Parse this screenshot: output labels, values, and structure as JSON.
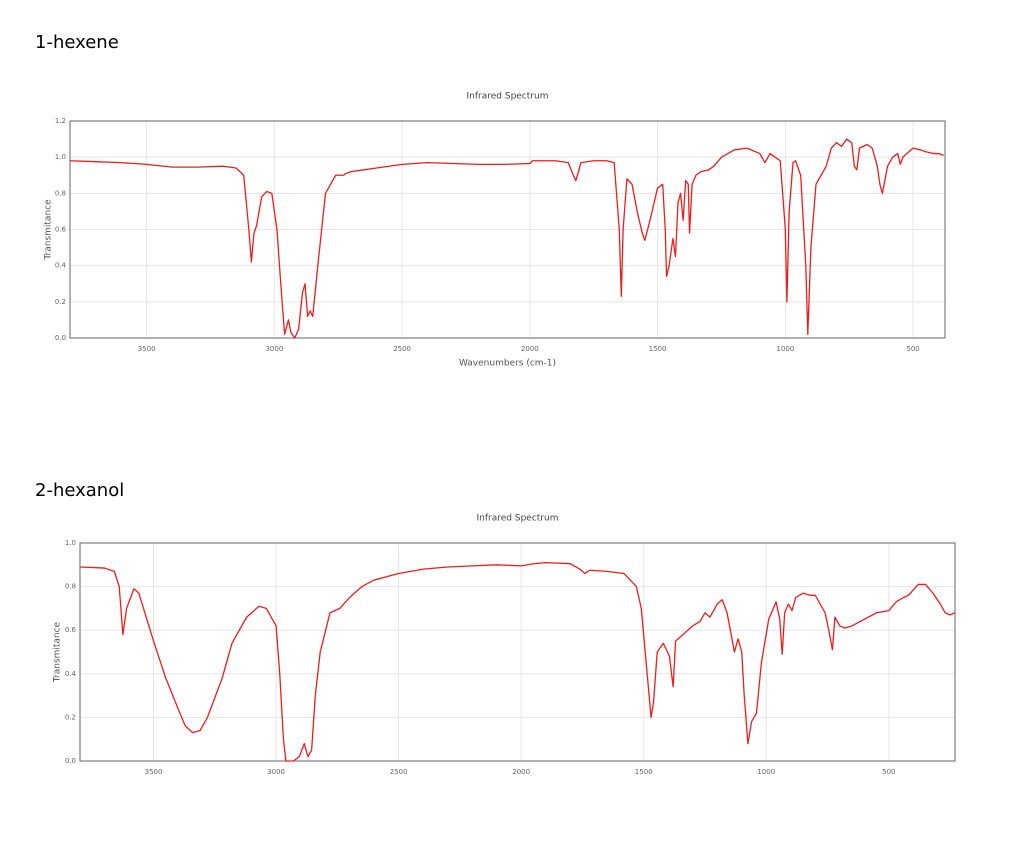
{
  "chart_data": [
    {
      "type": "line",
      "heading": "1-hexene",
      "title": "Infrared Spectrum",
      "xlabel": "Wavenumbers (cm-1)",
      "ylabel": "Transmitance",
      "xlim": [
        3800,
        375
      ],
      "ylim": [
        0,
        1.2
      ],
      "reverse_x": true,
      "grid": true,
      "xticks": [
        3500,
        3000,
        2500,
        2000,
        1500,
        1000,
        500
      ],
      "yticks": [
        {
          "value": 0,
          "label": "0.0"
        },
        0.2,
        0.4,
        0.6,
        0.8,
        {
          "value": 1,
          "label": "1.0"
        },
        1.2
      ],
      "x": [
        3800,
        3700,
        3600,
        3500,
        3400,
        3300,
        3200,
        3150,
        3120,
        3100,
        3090,
        3080,
        3070,
        3050,
        3030,
        3010,
        2990,
        2975,
        2960,
        2945,
        2935,
        2920,
        2905,
        2890,
        2880,
        2870,
        2860,
        2850,
        2830,
        2800,
        2760,
        2730,
        2720,
        2700,
        2650,
        2600,
        2500,
        2400,
        2300,
        2200,
        2100,
        2000,
        1990,
        1900,
        1850,
        1830,
        1820,
        1800,
        1750,
        1700,
        1670,
        1650,
        1642,
        1635,
        1620,
        1600,
        1580,
        1560,
        1550,
        1530,
        1500,
        1480,
        1470,
        1465,
        1455,
        1440,
        1430,
        1420,
        1410,
        1400,
        1390,
        1380,
        1375,
        1365,
        1350,
        1330,
        1300,
        1280,
        1250,
        1200,
        1150,
        1100,
        1080,
        1060,
        1040,
        1020,
        1000,
        994,
        985,
        970,
        960,
        940,
        920,
        912,
        900,
        880,
        860,
        840,
        820,
        800,
        780,
        760,
        740,
        730,
        720,
        710,
        680,
        660,
        640,
        630,
        620,
        600,
        580,
        560,
        550,
        540,
        500,
        470,
        450,
        420,
        400,
        380
      ],
      "series": [
        {
          "color": "#ee1c1c",
          "values": [
            0.98,
            0.975,
            0.97,
            0.96,
            0.945,
            0.945,
            0.95,
            0.94,
            0.9,
            0.6,
            0.42,
            0.58,
            0.62,
            0.78,
            0.81,
            0.8,
            0.6,
            0.3,
            0.02,
            0.1,
            0.03,
            0,
            0.05,
            0.25,
            0.3,
            0.12,
            0.15,
            0.12,
            0.4,
            0.8,
            0.9,
            0.9,
            0.91,
            0.92,
            0.93,
            0.94,
            0.96,
            0.97,
            0.965,
            0.96,
            0.96,
            0.965,
            0.98,
            0.98,
            0.97,
            0.9,
            0.87,
            0.97,
            0.98,
            0.98,
            0.97,
            0.6,
            0.23,
            0.6,
            0.88,
            0.85,
            0.7,
            0.58,
            0.54,
            0.65,
            0.83,
            0.85,
            0.6,
            0.34,
            0.4,
            0.55,
            0.45,
            0.75,
            0.8,
            0.65,
            0.87,
            0.85,
            0.58,
            0.85,
            0.9,
            0.92,
            0.93,
            0.95,
            1,
            1.04,
            1.05,
            1.02,
            0.97,
            1.02,
            1,
            0.98,
            0.6,
            0.2,
            0.7,
            0.97,
            0.98,
            0.9,
            0.4,
            0.02,
            0.5,
            0.85,
            0.9,
            0.95,
            1.05,
            1.08,
            1.06,
            1.1,
            1.08,
            0.95,
            0.93,
            1.05,
            1.07,
            1.05,
            0.95,
            0.85,
            0.8,
            0.95,
            1,
            1.02,
            0.96,
            1,
            1.05,
            1.04,
            1.03,
            1.02,
            1.02,
            1.01
          ]
        }
      ]
    },
    {
      "type": "line",
      "heading": "2-hexanol",
      "title": "Infrared Spectrum",
      "ylabel": "Transmitance",
      "xlim": [
        3800,
        230
      ],
      "ylim": [
        0,
        1
      ],
      "reverse_x": true,
      "grid": true,
      "xticks": [
        3500,
        3000,
        2500,
        2000,
        1500,
        1000,
        500
      ],
      "yticks": [
        {
          "value": 0,
          "label": "0.0"
        },
        0.2,
        0.4,
        0.6,
        0.8,
        {
          "value": 1,
          "label": "1.0"
        }
      ],
      "x": [
        3800,
        3700,
        3660,
        3640,
        3625,
        3610,
        3580,
        3560,
        3500,
        3450,
        3400,
        3370,
        3340,
        3310,
        3280,
        3220,
        3180,
        3120,
        3070,
        3040,
        3000,
        2985,
        2970,
        2960,
        2930,
        2905,
        2885,
        2870,
        2855,
        2840,
        2820,
        2780,
        2740,
        2700,
        2650,
        2600,
        2500,
        2400,
        2300,
        2200,
        2100,
        2000,
        1950,
        1900,
        1800,
        1760,
        1740,
        1720,
        1650,
        1580,
        1530,
        1510,
        1490,
        1470,
        1460,
        1445,
        1420,
        1395,
        1380,
        1370,
        1340,
        1300,
        1270,
        1250,
        1230,
        1200,
        1180,
        1160,
        1130,
        1115,
        1100,
        1090,
        1075,
        1060,
        1040,
        1020,
        990,
        960,
        945,
        935,
        925,
        910,
        895,
        880,
        850,
        820,
        800,
        780,
        760,
        745,
        730,
        720,
        700,
        680,
        650,
        600,
        550,
        500,
        470,
        440,
        420,
        380,
        350,
        320,
        290,
        270,
        250,
        230
      ],
      "series": [
        {
          "color": "#ee1c1c",
          "values": [
            0.89,
            0.885,
            0.87,
            0.8,
            0.58,
            0.7,
            0.79,
            0.77,
            0.55,
            0.38,
            0.24,
            0.16,
            0.13,
            0.14,
            0.2,
            0.38,
            0.54,
            0.66,
            0.71,
            0.7,
            0.62,
            0.4,
            0.1,
            0,
            0,
            0.02,
            0.08,
            0.02,
            0.05,
            0.3,
            0.5,
            0.68,
            0.7,
            0.75,
            0.8,
            0.83,
            0.86,
            0.88,
            0.89,
            0.895,
            0.9,
            0.895,
            0.905,
            0.91,
            0.905,
            0.88,
            0.86,
            0.875,
            0.87,
            0.86,
            0.8,
            0.7,
            0.45,
            0.2,
            0.27,
            0.5,
            0.54,
            0.48,
            0.34,
            0.55,
            0.58,
            0.62,
            0.64,
            0.68,
            0.66,
            0.72,
            0.74,
            0.68,
            0.5,
            0.56,
            0.5,
            0.3,
            0.08,
            0.18,
            0.22,
            0.45,
            0.65,
            0.73,
            0.65,
            0.49,
            0.68,
            0.72,
            0.69,
            0.75,
            0.77,
            0.76,
            0.76,
            0.72,
            0.68,
            0.6,
            0.51,
            0.66,
            0.62,
            0.61,
            0.62,
            0.65,
            0.68,
            0.69,
            0.73,
            0.75,
            0.76,
            0.81,
            0.81,
            0.77,
            0.72,
            0.68,
            0.67,
            0.68
          ]
        }
      ]
    }
  ]
}
